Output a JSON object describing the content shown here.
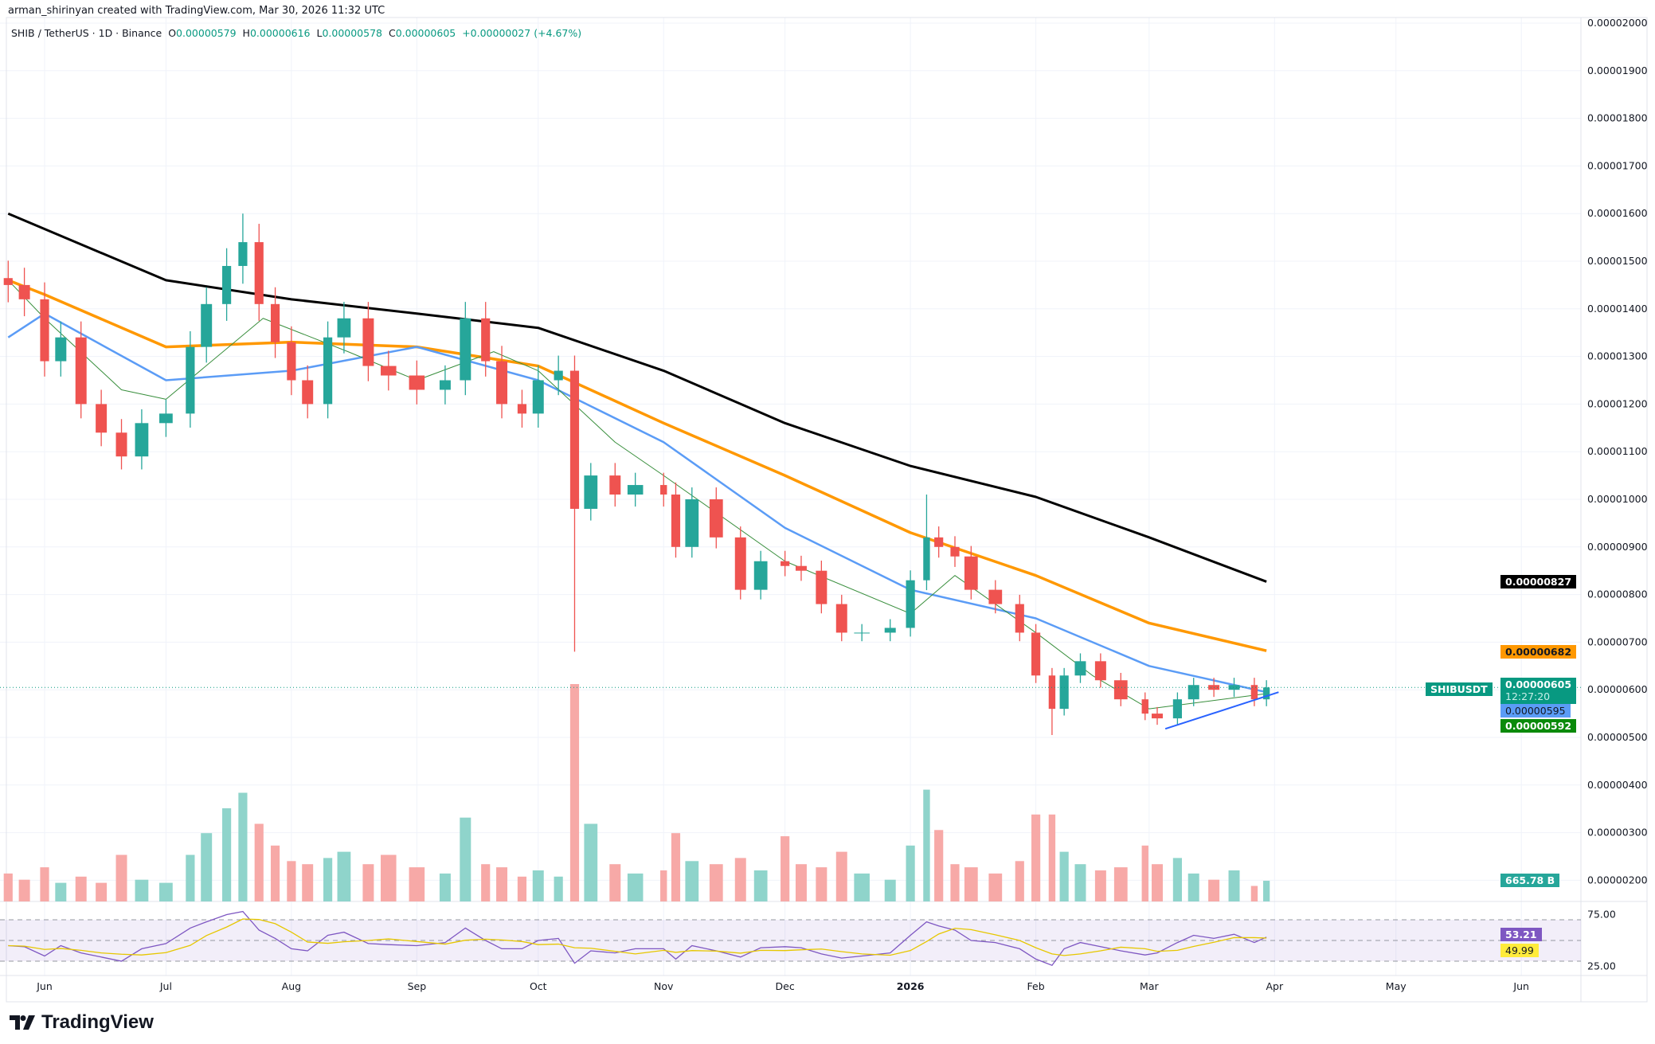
{
  "header": {
    "credit": "arman_shirinyan created with TradingView.com, Mar 30, 2026 11:32 UTC",
    "symbol": "SHIB / TetherUS · 1D · Binance",
    "open_label": "O",
    "open": "0.00000579",
    "high_label": "H",
    "high": "0.00000616",
    "low_label": "L",
    "low": "0.00000578",
    "close_label": "C",
    "close": "0.00000605",
    "change": "+0.00000027 (+4.67%)"
  },
  "branding": {
    "logo_text": "TradingView"
  },
  "colors": {
    "up": "#26a69a",
    "down": "#ef5350",
    "ma200": "#000000",
    "ma100": "#ff9800",
    "ma50": "#5b9cf6",
    "ma20": "#388e3c",
    "rsi": "#7e57c2",
    "rsi_ma": "#ffeb3b",
    "trendline": "#2962ff"
  },
  "price_tags": {
    "ma200": "0.00000827",
    "ma100": "0.00000682",
    "symbol": "SHIBUSDT",
    "last": "0.00000605",
    "countdown": "12:27:20",
    "ma50": "0.00000595",
    "ma20": "0.00000592",
    "volume": "665.78 B",
    "rsi": "53.21",
    "rsi_ma": "49.99"
  },
  "chart_data": {
    "type": "candlestick",
    "price_unit": "1e-6 USDT",
    "y_ticks": [
      "0.00002000",
      "0.00001900",
      "0.00001800",
      "0.00001700",
      "0.00001600",
      "0.00001500",
      "0.00001400",
      "0.00001300",
      "0.00001200",
      "0.00001100",
      "0.00001000",
      "0.00000900",
      "0.00000800",
      "0.00000700",
      "0.00000600",
      "0.00000500",
      "0.00000400",
      "0.00000300",
      "0.00000200"
    ],
    "ylim": [
      2.0,
      20.0
    ],
    "x_ticks": [
      {
        "label": "Jun",
        "date": "2025-06-01"
      },
      {
        "label": "Jul",
        "date": "2025-07-01"
      },
      {
        "label": "Aug",
        "date": "2025-08-01"
      },
      {
        "label": "Sep",
        "date": "2025-09-01"
      },
      {
        "label": "Oct",
        "date": "2025-10-01"
      },
      {
        "label": "Nov",
        "date": "2025-11-01"
      },
      {
        "label": "Dec",
        "date": "2025-12-01"
      },
      {
        "label": "2026",
        "date": "2026-01-01"
      },
      {
        "label": "Feb",
        "date": "2026-02-01"
      },
      {
        "label": "Mar",
        "date": "2026-03-01"
      },
      {
        "label": "Apr",
        "date": "2026-04-01"
      },
      {
        "label": "May",
        "date": "2026-05-01"
      },
      {
        "label": "Jun",
        "date": "2026-06-01"
      }
    ],
    "rsi_ticks": [
      "75.00",
      "25.00"
    ],
    "candles": [
      [
        "2025-05-23",
        14.5,
        900,
        45
      ],
      [
        "2025-05-27",
        14.2,
        700,
        44
      ],
      [
        "2025-06-01",
        12.9,
        1100,
        35
      ],
      [
        "2025-06-05",
        13.4,
        600,
        45
      ],
      [
        "2025-06-10",
        12.0,
        800,
        38
      ],
      [
        "2025-06-15",
        11.4,
        600,
        34
      ],
      [
        "2025-06-20",
        10.9,
        1500,
        30
      ],
      [
        "2025-06-25",
        11.6,
        700,
        42
      ],
      [
        "2025-07-01",
        11.8,
        600,
        47
      ],
      [
        "2025-07-07",
        13.2,
        1500,
        62
      ],
      [
        "2025-07-11",
        14.1,
        2200,
        68
      ],
      [
        "2025-07-16",
        14.9,
        3000,
        75
      ],
      [
        "2025-07-20",
        15.4,
        3500,
        78
      ],
      [
        "2025-07-24",
        14.1,
        2500,
        60
      ],
      [
        "2025-07-28",
        13.3,
        1800,
        52
      ],
      [
        "2025-08-01",
        12.5,
        1300,
        42
      ],
      [
        "2025-08-05",
        12.0,
        1200,
        40
      ],
      [
        "2025-08-10",
        13.4,
        1400,
        55
      ],
      [
        "2025-08-14",
        13.8,
        1600,
        58
      ],
      [
        "2025-08-20",
        12.8,
        1200,
        47
      ],
      [
        "2025-08-25",
        12.6,
        1500,
        46
      ],
      [
        "2025-09-01",
        12.3,
        1100,
        45
      ],
      [
        "2025-09-08",
        12.5,
        900,
        48
      ],
      [
        "2025-09-13",
        13.8,
        2700,
        62
      ],
      [
        "2025-09-18",
        12.9,
        1200,
        50
      ],
      [
        "2025-09-22",
        12.0,
        1100,
        42
      ],
      [
        "2025-09-27",
        11.8,
        800,
        42
      ],
      [
        "2025-10-01",
        12.5,
        1000,
        50
      ],
      [
        "2025-10-06",
        12.7,
        800,
        52
      ],
      [
        "2025-10-10",
        9.8,
        7000,
        28
      ],
      [
        "2025-10-14",
        10.5,
        2500,
        40
      ],
      [
        "2025-10-20",
        10.1,
        1200,
        38
      ],
      [
        "2025-10-25",
        10.3,
        900,
        42
      ],
      [
        "2025-11-01",
        10.1,
        1000,
        42
      ],
      [
        "2025-11-04",
        9.0,
        2200,
        32
      ],
      [
        "2025-11-08",
        10.0,
        1300,
        45
      ],
      [
        "2025-11-14",
        9.2,
        1200,
        40
      ],
      [
        "2025-11-20",
        8.1,
        1400,
        34
      ],
      [
        "2025-11-25",
        8.7,
        1000,
        43
      ],
      [
        "2025-12-01",
        8.6,
        2100,
        44
      ],
      [
        "2025-12-05",
        8.5,
        1200,
        43
      ],
      [
        "2025-12-10",
        7.8,
        1100,
        37
      ],
      [
        "2025-12-15",
        7.2,
        1600,
        33
      ],
      [
        "2025-12-20",
        7.2,
        900,
        35
      ],
      [
        "2025-12-27",
        7.3,
        700,
        38
      ],
      [
        "2026-01-01",
        8.3,
        1800,
        55
      ],
      [
        "2026-01-05",
        9.2,
        3600,
        68
      ],
      [
        "2026-01-08",
        9.0,
        2300,
        64
      ],
      [
        "2026-01-12",
        8.8,
        1200,
        60
      ],
      [
        "2026-01-16",
        8.1,
        1100,
        50
      ],
      [
        "2026-01-22",
        7.8,
        900,
        48
      ],
      [
        "2026-01-28",
        7.2,
        1300,
        42
      ],
      [
        "2026-02-01",
        6.3,
        2800,
        32
      ],
      [
        "2026-02-05",
        5.6,
        2800,
        26
      ],
      [
        "2026-02-08",
        6.3,
        1600,
        42
      ],
      [
        "2026-02-12",
        6.6,
        1200,
        48
      ],
      [
        "2026-02-17",
        6.2,
        1000,
        44
      ],
      [
        "2026-02-22",
        5.8,
        1100,
        40
      ],
      [
        "2026-02-28",
        5.5,
        1800,
        36
      ],
      [
        "2026-03-03",
        5.4,
        1200,
        38
      ],
      [
        "2026-03-08",
        5.8,
        1400,
        48
      ],
      [
        "2026-03-12",
        6.1,
        900,
        55
      ],
      [
        "2026-03-17",
        6.0,
        700,
        52
      ],
      [
        "2026-03-22",
        6.1,
        1000,
        56
      ],
      [
        "2026-03-27",
        5.8,
        500,
        48
      ],
      [
        "2026-03-30",
        6.05,
        666,
        53.21
      ]
    ],
    "candle_columns": [
      "date",
      "close",
      "volume_B",
      "rsi"
    ],
    "extreme_wicks": {
      "2025-07-20": {
        "high": 16.0
      },
      "2025-10-10": {
        "low": 6.8
      },
      "2026-01-05": {
        "high": 10.1
      },
      "2026-02-05": {
        "low": 5.05
      }
    },
    "moving_averages": [
      {
        "id": "ma200",
        "points": [
          [
            "2025-05-23",
            16.0
          ],
          [
            "2025-07-01",
            14.6
          ],
          [
            "2025-08-01",
            14.2
          ],
          [
            "2025-09-01",
            13.9
          ],
          [
            "2025-10-01",
            13.6
          ],
          [
            "2025-11-01",
            12.7
          ],
          [
            "2025-12-01",
            11.6
          ],
          [
            "2026-01-01",
            10.7
          ],
          [
            "2026-02-01",
            10.05
          ],
          [
            "2026-03-01",
            9.2
          ],
          [
            "2026-03-30",
            8.27
          ]
        ]
      },
      {
        "id": "ma100",
        "points": [
          [
            "2025-05-23",
            14.6
          ],
          [
            "2025-06-01",
            14.3
          ],
          [
            "2025-07-01",
            13.2
          ],
          [
            "2025-08-01",
            13.3
          ],
          [
            "2025-09-01",
            13.2
          ],
          [
            "2025-10-01",
            12.8
          ],
          [
            "2025-11-01",
            11.6
          ],
          [
            "2025-12-01",
            10.5
          ],
          [
            "2026-01-01",
            9.3
          ],
          [
            "2026-02-01",
            8.4
          ],
          [
            "2026-03-01",
            7.4
          ],
          [
            "2026-03-30",
            6.82
          ]
        ]
      },
      {
        "id": "ma50",
        "points": [
          [
            "2025-05-23",
            13.4
          ],
          [
            "2025-06-01",
            13.9
          ],
          [
            "2025-07-01",
            12.5
          ],
          [
            "2025-08-01",
            12.7
          ],
          [
            "2025-09-01",
            13.2
          ],
          [
            "2025-10-01",
            12.5
          ],
          [
            "2025-11-01",
            11.2
          ],
          [
            "2025-12-01",
            9.4
          ],
          [
            "2026-01-01",
            8.1
          ],
          [
            "2026-02-01",
            7.5
          ],
          [
            "2026-03-01",
            6.5
          ],
          [
            "2026-03-30",
            5.95
          ]
        ]
      },
      {
        "id": "ma20",
        "points": [
          [
            "2025-05-23",
            14.6
          ],
          [
            "2025-06-01",
            13.8
          ],
          [
            "2025-06-20",
            12.3
          ],
          [
            "2025-07-01",
            12.1
          ],
          [
            "2025-07-25",
            13.8
          ],
          [
            "2025-08-15",
            13.1
          ],
          [
            "2025-09-01",
            12.5
          ],
          [
            "2025-09-20",
            13.1
          ],
          [
            "2025-10-01",
            12.7
          ],
          [
            "2025-10-20",
            11.2
          ],
          [
            "2025-11-01",
            10.5
          ],
          [
            "2025-12-01",
            8.7
          ],
          [
            "2026-01-01",
            7.6
          ],
          [
            "2026-01-12",
            8.4
          ],
          [
            "2026-02-01",
            7.2
          ],
          [
            "2026-02-15",
            6.3
          ],
          [
            "2026-03-01",
            5.6
          ],
          [
            "2026-03-30",
            5.92
          ]
        ]
      }
    ],
    "trendline": [
      [
        "2026-03-05",
        5.18
      ],
      [
        "2026-04-02",
        5.95
      ]
    ],
    "rsi_levels": {
      "upper": 70,
      "middle": 50,
      "lower": 30
    }
  }
}
